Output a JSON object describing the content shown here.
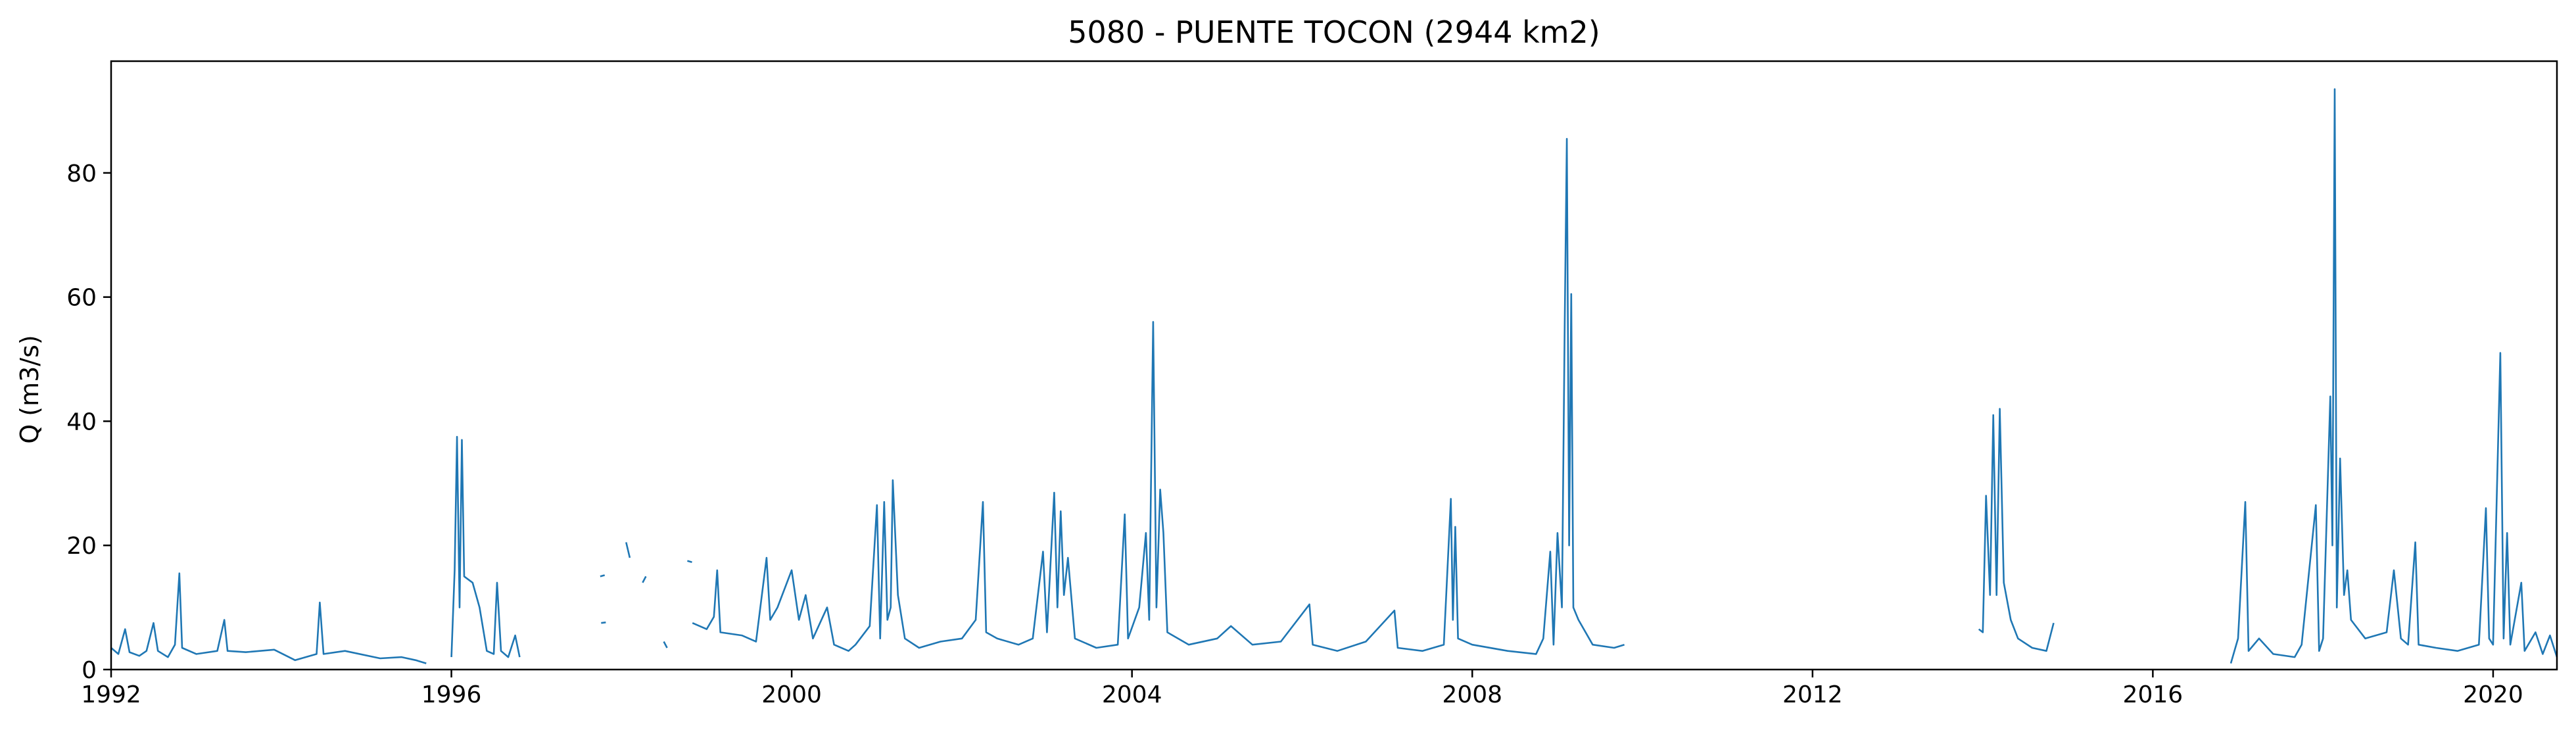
{
  "chart_data": {
    "type": "line",
    "title": "5080 - PUENTE TOCON (2944 km2)",
    "xlabel": "",
    "ylabel": "Q (m3/s)",
    "x_axis": "date",
    "xlim": [
      "1992-01-01",
      "2020-10-01"
    ],
    "ylim": [
      0,
      98
    ],
    "xticks": [
      "1992",
      "1996",
      "2000",
      "2004",
      "2008",
      "2012",
      "2016",
      "2020"
    ],
    "yticks": [
      0,
      20,
      40,
      60,
      80
    ],
    "grid": false,
    "legend": null,
    "colors": {
      "series": "#1f77b4"
    },
    "series": [
      {
        "segments": [
          [
            [
              "1992-01-01",
              3.5
            ],
            [
              "1992-02-01",
              2.5
            ],
            [
              "1992-03-01",
              6.5
            ],
            [
              "1992-03-20",
              2.8
            ],
            [
              "1992-05-01",
              2.2
            ],
            [
              "1992-06-01",
              3.0
            ],
            [
              "1992-07-01",
              7.5
            ],
            [
              "1992-07-20",
              3.0
            ],
            [
              "1992-09-01",
              2.0
            ],
            [
              "1992-10-01",
              4.0
            ],
            [
              "1992-10-20",
              15.5
            ],
            [
              "1992-11-01",
              3.5
            ],
            [
              "1993-01-01",
              2.5
            ],
            [
              "1993-04-01",
              3.0
            ],
            [
              "1993-05-01",
              8.0
            ],
            [
              "1993-05-15",
              3.0
            ],
            [
              "1993-08-01",
              2.8
            ],
            [
              "1993-12-01",
              3.2
            ],
            [
              "1994-03-01",
              1.5
            ],
            [
              "1994-06-01",
              2.5
            ],
            [
              "1994-06-15",
              10.8
            ],
            [
              "1994-07-01",
              2.5
            ],
            [
              "1994-10-01",
              3.0
            ],
            [
              "1995-03-01",
              1.8
            ],
            [
              "1995-06-01",
              2.0
            ],
            [
              "1995-08-01",
              1.5
            ],
            [
              "1995-09-15",
              1.0
            ]
          ],
          [
            [
              "1996-01-01",
              2.0
            ],
            [
              "1996-01-15",
              16.0
            ],
            [
              "1996-01-25",
              37.5
            ],
            [
              "1996-02-05",
              10.0
            ],
            [
              "1996-02-15",
              37.0
            ],
            [
              "1996-02-25",
              15.0
            ],
            [
              "1996-04-01",
              14.0
            ],
            [
              "1996-05-01",
              10.0
            ],
            [
              "1996-06-01",
              3.0
            ],
            [
              "1996-07-01",
              2.5
            ],
            [
              "1996-07-15",
              14.0
            ],
            [
              "1996-08-01",
              3.0
            ],
            [
              "1996-09-01",
              2.0
            ],
            [
              "1996-10-01",
              5.5
            ],
            [
              "1996-10-20",
              2.0
            ]
          ],
          [
            [
              "1997-10-01",
              15.0
            ],
            [
              "1997-10-20",
              15.2
            ]
          ],
          [
            [
              "1997-10-05",
              7.5
            ],
            [
              "1997-10-25",
              7.6
            ]
          ],
          [
            [
              "1998-01-20",
              20.5
            ],
            [
              "1998-02-05",
              18.0
            ]
          ],
          [
            [
              "1998-04-01",
              14.0
            ],
            [
              "1998-04-15",
              15.0
            ]
          ],
          [
            [
              "1998-07-01",
              4.5
            ],
            [
              "1998-07-15",
              3.5
            ]
          ],
          [
            [
              "1998-10-10",
              17.5
            ],
            [
              "1998-10-30",
              17.3
            ]
          ],
          [
            [
              "1998-11-01",
              7.5
            ],
            [
              "1999-01-01",
              6.5
            ],
            [
              "1999-02-01",
              8.5
            ],
            [
              "1999-02-15",
              16.0
            ],
            [
              "1999-03-01",
              6.0
            ],
            [
              "1999-06-01",
              5.5
            ],
            [
              "1999-08-01",
              4.5
            ],
            [
              "1999-09-15",
              18.0
            ],
            [
              "1999-10-01",
              8.0
            ],
            [
              "1999-11-01",
              10.0
            ],
            [
              "2000-01-01",
              16.0
            ],
            [
              "2000-02-01",
              8.0
            ],
            [
              "2000-03-01",
              12.0
            ],
            [
              "2000-04-01",
              5.0
            ],
            [
              "2000-06-01",
              10.0
            ],
            [
              "2000-07-01",
              4.0
            ],
            [
              "2000-09-01",
              3.0
            ],
            [
              "2000-10-01",
              4.0
            ],
            [
              "2000-12-01",
              7.0
            ],
            [
              "2001-01-01",
              26.5
            ],
            [
              "2001-01-15",
              5.0
            ],
            [
              "2001-02-01",
              27.0
            ],
            [
              "2001-02-15",
              8.0
            ],
            [
              "2001-03-01",
              10.0
            ],
            [
              "2001-03-10",
              30.5
            ],
            [
              "2001-04-01",
              12.0
            ],
            [
              "2001-05-01",
              5.0
            ],
            [
              "2001-07-01",
              3.5
            ],
            [
              "2001-10-01",
              4.5
            ],
            [
              "2002-01-01",
              5.0
            ],
            [
              "2002-03-01",
              8.0
            ],
            [
              "2002-04-01",
              27.0
            ],
            [
              "2002-04-15",
              6.0
            ],
            [
              "2002-06-01",
              5.0
            ],
            [
              "2002-09-01",
              4.0
            ],
            [
              "2002-11-01",
              5.0
            ],
            [
              "2002-12-15",
              19.0
            ],
            [
              "2003-01-01",
              6.0
            ],
            [
              "2003-02-01",
              28.5
            ],
            [
              "2003-02-15",
              10.0
            ],
            [
              "2003-03-01",
              25.5
            ],
            [
              "2003-03-15",
              12.0
            ],
            [
              "2003-04-01",
              18.0
            ],
            [
              "2003-05-01",
              5.0
            ],
            [
              "2003-08-01",
              3.5
            ],
            [
              "2003-11-01",
              4.0
            ],
            [
              "2003-12-01",
              25.0
            ],
            [
              "2003-12-15",
              5.0
            ],
            [
              "2004-02-01",
              10.0
            ],
            [
              "2004-03-01",
              22.0
            ],
            [
              "2004-03-15",
              8.0
            ],
            [
              "2004-04-01",
              56.0
            ],
            [
              "2004-04-15",
              10.0
            ],
            [
              "2004-05-01",
              29.0
            ],
            [
              "2004-05-15",
              22.0
            ],
            [
              "2004-06-01",
              6.0
            ],
            [
              "2004-09-01",
              4.0
            ],
            [
              "2005-01-01",
              5.0
            ],
            [
              "2005-03-01",
              7.0
            ],
            [
              "2005-06-01",
              4.0
            ],
            [
              "2005-10-01",
              4.5
            ],
            [
              "2006-02-01",
              10.5
            ],
            [
              "2006-02-15",
              4.0
            ],
            [
              "2006-06-01",
              3.0
            ],
            [
              "2006-10-01",
              4.5
            ],
            [
              "2007-02-01",
              9.5
            ],
            [
              "2007-02-15",
              3.5
            ],
            [
              "2007-06-01",
              3.0
            ],
            [
              "2007-09-01",
              4.0
            ],
            [
              "2007-10-01",
              27.5
            ],
            [
              "2007-10-10",
              8.0
            ],
            [
              "2007-10-20",
              23.0
            ],
            [
              "2007-11-01",
              5.0
            ],
            [
              "2008-01-01",
              4.0
            ],
            [
              "2008-06-01",
              3.0
            ],
            [
              "2008-10-01",
              2.5
            ],
            [
              "2008-11-01",
              5.0
            ],
            [
              "2008-12-01",
              19.0
            ],
            [
              "2008-12-15",
              4.0
            ],
            [
              "2009-01-01",
              22.0
            ],
            [
              "2009-01-20",
              10.0
            ],
            [
              "2009-02-01",
              56.0
            ],
            [
              "2009-02-10",
              85.5
            ],
            [
              "2009-02-20",
              20.0
            ],
            [
              "2009-03-01",
              60.5
            ],
            [
              "2009-03-10",
              10.0
            ],
            [
              "2009-04-01",
              8.0
            ],
            [
              "2009-06-01",
              4.0
            ],
            [
              "2009-09-01",
              3.5
            ],
            [
              "2009-10-15",
              4.0
            ]
          ],
          [
            [
              "2013-12-15",
              6.5
            ],
            [
              "2014-01-01",
              6.0
            ],
            [
              "2014-01-15",
              28.0
            ],
            [
              "2014-02-01",
              12.0
            ],
            [
              "2014-02-15",
              41.0
            ],
            [
              "2014-03-01",
              12.0
            ],
            [
              "2014-03-15",
              42.0
            ],
            [
              "2014-04-01",
              14.0
            ],
            [
              "2014-05-01",
              8.0
            ],
            [
              "2014-06-01",
              5.0
            ],
            [
              "2014-08-01",
              3.5
            ],
            [
              "2014-10-01",
              3.0
            ],
            [
              "2014-11-01",
              7.5
            ]
          ],
          [
            [
              "2016-12-01",
              1.0
            ],
            [
              "2017-01-01",
              5.0
            ],
            [
              "2017-02-01",
              27.0
            ],
            [
              "2017-02-15",
              3.0
            ],
            [
              "2017-04-01",
              5.0
            ],
            [
              "2017-06-01",
              2.5
            ],
            [
              "2017-09-01",
              2.0
            ],
            [
              "2017-10-01",
              4.0
            ],
            [
              "2017-12-01",
              26.5
            ],
            [
              "2017-12-15",
              3.0
            ],
            [
              "2018-01-01",
              5.0
            ],
            [
              "2018-02-01",
              44.0
            ],
            [
              "2018-02-10",
              20.0
            ],
            [
              "2018-02-20",
              93.5
            ],
            [
              "2018-03-01",
              10.0
            ],
            [
              "2018-03-15",
              34.0
            ],
            [
              "2018-04-01",
              12.0
            ],
            [
              "2018-04-15",
              16.0
            ],
            [
              "2018-05-01",
              8.0
            ],
            [
              "2018-07-01",
              5.0
            ],
            [
              "2018-10-01",
              6.0
            ],
            [
              "2018-11-01",
              16.0
            ],
            [
              "2018-12-01",
              5.0
            ],
            [
              "2019-01-01",
              4.0
            ],
            [
              "2019-02-01",
              20.5
            ],
            [
              "2019-02-15",
              4.0
            ],
            [
              "2019-05-01",
              3.5
            ],
            [
              "2019-08-01",
              3.0
            ],
            [
              "2019-11-01",
              4.0
            ],
            [
              "2019-12-01",
              26.0
            ],
            [
              "2019-12-15",
              5.0
            ],
            [
              "2020-01-01",
              4.0
            ],
            [
              "2020-02-01",
              51.0
            ],
            [
              "2020-02-15",
              5.0
            ],
            [
              "2020-03-01",
              22.0
            ],
            [
              "2020-03-15",
              4.0
            ],
            [
              "2020-05-01",
              14.0
            ],
            [
              "2020-05-15",
              3.0
            ],
            [
              "2020-07-01",
              6.0
            ],
            [
              "2020-08-01",
              2.5
            ],
            [
              "2020-09-01",
              5.5
            ],
            [
              "2020-10-01",
              2.0
            ]
          ]
        ]
      }
    ]
  }
}
